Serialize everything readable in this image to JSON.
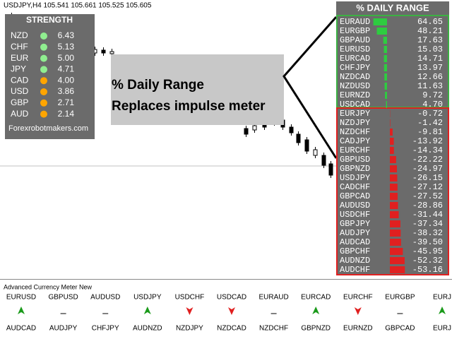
{
  "header": {
    "symbol_info": "USDJPY,H4  105.541 105.661 105.525 105.605"
  },
  "strength": {
    "title": "STRENGTH",
    "rows": [
      {
        "currency": "NZD",
        "value": "6.43",
        "color": "#90ee90"
      },
      {
        "currency": "CHF",
        "value": "5.13",
        "color": "#90ee90"
      },
      {
        "currency": "EUR",
        "value": "5.00",
        "color": "#90ee90"
      },
      {
        "currency": "JPY",
        "value": "4.71",
        "color": "#90ee90"
      },
      {
        "currency": "CAD",
        "value": "4.00",
        "color": "#ffa500"
      },
      {
        "currency": "USD",
        "value": "3.86",
        "color": "#ffa500"
      },
      {
        "currency": "GBP",
        "value": "2.71",
        "color": "#ffa500"
      },
      {
        "currency": "AUD",
        "value": "2.14",
        "color": "#ffa500"
      }
    ],
    "footer": "Forexrobotmakers.com"
  },
  "callout": {
    "text": "% Daily Range Replaces impulse meter"
  },
  "daily_range": {
    "title": "% DAILY RANGE",
    "rows": [
      {
        "pair": "EURAUD",
        "value": "64.65"
      },
      {
        "pair": "EURGBP",
        "value": "48.21"
      },
      {
        "pair": "GBPAUD",
        "value": "17.63"
      },
      {
        "pair": "EURUSD",
        "value": "15.03"
      },
      {
        "pair": "EURCAD",
        "value": "14.71"
      },
      {
        "pair": "CHFJPY",
        "value": "13.97"
      },
      {
        "pair": "NZDCAD",
        "value": "12.66"
      },
      {
        "pair": "NZDUSD",
        "value": "11.63"
      },
      {
        "pair": "EURNZD",
        "value": "9.72"
      },
      {
        "pair": "USDCAD",
        "value": "4.70"
      },
      {
        "pair": "EURJPY",
        "value": "-0.72"
      },
      {
        "pair": "NZDJPY",
        "value": "-1.42"
      },
      {
        "pair": "NZDCHF",
        "value": "-9.81"
      },
      {
        "pair": "CADJPY",
        "value": "-13.92"
      },
      {
        "pair": "EURCHF",
        "value": "-14.34"
      },
      {
        "pair": "GBPUSD",
        "value": "-22.22"
      },
      {
        "pair": "GBPNZD",
        "value": "-24.97"
      },
      {
        "pair": "USDJPY",
        "value": "-26.15"
      },
      {
        "pair": "CADCHF",
        "value": "-27.12"
      },
      {
        "pair": "GBPCAD",
        "value": "-27.52"
      },
      {
        "pair": "AUDUSD",
        "value": "-28.86"
      },
      {
        "pair": "USDCHF",
        "value": "-31.44"
      },
      {
        "pair": "GBPJPY",
        "value": "-37.34"
      },
      {
        "pair": "AUDJPY",
        "value": "-38.32"
      },
      {
        "pair": "AUDCAD",
        "value": "-39.50"
      },
      {
        "pair": "GBPCHF",
        "value": "-45.95"
      },
      {
        "pair": "AUDNZD",
        "value": "-52.32"
      },
      {
        "pair": "AUDCHF",
        "value": "-53.16"
      }
    ]
  },
  "meter": {
    "title": "Advanced Currency Meter New",
    "top_pairs": [
      {
        "pair": "EURUSD",
        "signal": "up"
      },
      {
        "pair": "GBPUSD",
        "signal": "flat"
      },
      {
        "pair": "AUDUSD",
        "signal": "flat"
      },
      {
        "pair": "USDJPY",
        "signal": "up"
      },
      {
        "pair": "USDCHF",
        "signal": "down"
      },
      {
        "pair": "USDCAD",
        "signal": "down"
      },
      {
        "pair": "EURAUD",
        "signal": "flat"
      },
      {
        "pair": "EURCAD",
        "signal": "up"
      },
      {
        "pair": "EURCHF",
        "signal": "down"
      },
      {
        "pair": "EURGBP",
        "signal": "flat"
      },
      {
        "pair": "EURJ",
        "signal": "up"
      }
    ],
    "bottom_pairs": [
      "AUDCAD",
      "AUDJPY",
      "CHFJPY",
      "AUDNZD",
      "NZDJPY",
      "NZDCAD",
      "NZDCHF",
      "GBPNZD",
      "EURNZD",
      "GBPCAD",
      "EURJ"
    ]
  }
}
